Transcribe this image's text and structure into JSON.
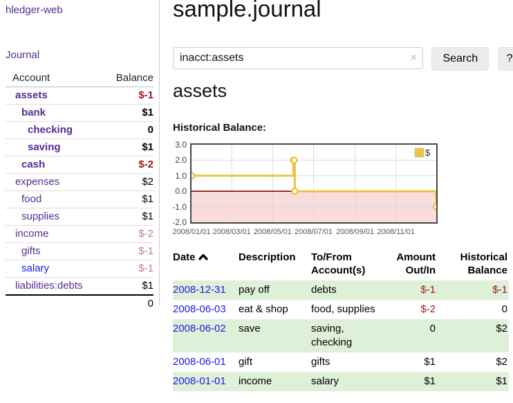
{
  "sidebar": {
    "app_title": "hledger-web",
    "journal_link": "Journal",
    "account_table": {
      "headers": [
        "Account",
        "Balance"
      ],
      "rows": [
        {
          "account": "assets",
          "balance": "$-1",
          "depth": 1,
          "bold": true,
          "balance_tone": "negative-strong"
        },
        {
          "account": "bank",
          "balance": "$1",
          "depth": 2,
          "bold": true,
          "balance_tone": "normal"
        },
        {
          "account": "checking",
          "balance": "0",
          "depth": 3,
          "bold": true,
          "balance_tone": "normal"
        },
        {
          "account": "saving",
          "balance": "$1",
          "depth": 3,
          "bold": true,
          "balance_tone": "normal"
        },
        {
          "account": "cash",
          "balance": "$-2",
          "depth": 2,
          "bold": true,
          "balance_tone": "negative-strong"
        },
        {
          "account": "expenses",
          "balance": "$2",
          "depth": 1,
          "bold": false,
          "balance_tone": "normal"
        },
        {
          "account": "food",
          "balance": "$1",
          "depth": 2,
          "bold": false,
          "balance_tone": "normal"
        },
        {
          "account": "supplies",
          "balance": "$1",
          "depth": 2,
          "bold": false,
          "balance_tone": "normal"
        },
        {
          "account": "income",
          "balance": "$-2",
          "depth": 1,
          "bold": false,
          "balance_tone": "negative-muted"
        },
        {
          "account": "gifts",
          "balance": "$-1",
          "depth": 2,
          "bold": false,
          "balance_tone": "negative-muted"
        },
        {
          "account": "salary",
          "balance": "$-1",
          "depth": 2,
          "bold": false,
          "balance_tone": "negative-muted",
          "link_tone": "blue"
        },
        {
          "account": "liabilities:debts",
          "balance": "$1",
          "depth": 1,
          "bold": false,
          "balance_tone": "normal"
        }
      ],
      "total": "0"
    }
  },
  "header": {
    "title": "sample.journal"
  },
  "search": {
    "value": "inacct:assets",
    "clear_icon": "×",
    "button_label": "Search",
    "help_label": "?"
  },
  "main": {
    "account_heading": "assets",
    "chart_label": "Historical Balance:"
  },
  "chart_data": {
    "type": "line",
    "step": true,
    "title": "Historical Balance",
    "series": [
      {
        "name": "$",
        "color": "#edc240",
        "points": [
          [
            "2008-01-01",
            1
          ],
          [
            "2008-06-01",
            2
          ],
          [
            "2008-06-02",
            2
          ],
          [
            "2008-06-03",
            0
          ],
          [
            "2008-12-31",
            -1
          ]
        ]
      }
    ],
    "x_range": [
      "2008-01-01",
      "2008-12-31"
    ],
    "ylim": [
      -2,
      3
    ],
    "y_ticks": [
      {
        "value": 3,
        "label": "3.0"
      },
      {
        "value": 2,
        "label": "2.0"
      },
      {
        "value": 1,
        "label": "1.0"
      },
      {
        "value": 0,
        "label": "0.0"
      },
      {
        "value": -1,
        "label": "-1.0"
      },
      {
        "value": -2,
        "label": "-2.0"
      }
    ],
    "x_ticks": [
      {
        "date": "2008-01-01",
        "label": "2008/01/01"
      },
      {
        "date": "2008-03-01",
        "label": "2008/03/01"
      },
      {
        "date": "2008-05-01",
        "label": "2008/05/01"
      },
      {
        "date": "2008-07-01",
        "label": "2008/07/01"
      },
      {
        "date": "2008-09-01",
        "label": "2008/09/01"
      },
      {
        "date": "2008-11-01",
        "label": "2008/11/01"
      }
    ],
    "legend": {
      "label": "$",
      "position": "top-right",
      "swatch_color": "#edc240"
    },
    "grid": true,
    "negative_region_color": "#f9dcdc",
    "zero_line_color": "#8b0000",
    "gridline_color": "#dbdbdb"
  },
  "register": {
    "headers": [
      "Date",
      "Description",
      "To/From Account(s)",
      "Amount Out/In",
      "Historical Balance"
    ],
    "sort": {
      "column": "Date",
      "direction": "ascending"
    },
    "rows": [
      {
        "date": "2008-12-31",
        "description": "pay off",
        "accounts": "debts",
        "amount": "$-1",
        "amount_negative": true,
        "balance": "$-1",
        "balance_negative": true
      },
      {
        "date": "2008-06-03",
        "description": "eat & shop",
        "accounts": "food, supplies",
        "amount": "$-2",
        "amount_negative": true,
        "balance": "0",
        "balance_negative": false
      },
      {
        "date": "2008-06-02",
        "description": "save",
        "accounts": "saving, checking",
        "amount": "0",
        "amount_negative": false,
        "balance": "$2",
        "balance_negative": false
      },
      {
        "date": "2008-06-01",
        "description": "gift",
        "accounts": "gifts",
        "amount": "$1",
        "amount_negative": false,
        "balance": "$2",
        "balance_negative": false
      },
      {
        "date": "2008-01-01",
        "description": "income",
        "accounts": "salary",
        "amount": "$1",
        "amount_negative": false,
        "balance": "$1",
        "balance_negative": false
      }
    ]
  },
  "colors": {
    "purple": "#552d90",
    "link_blue": "#1a1ae8",
    "negative_strong": "#9c1414",
    "negative_muted": "#bc7f7f",
    "row_green": "#dff0d8",
    "accent_gold": "#edc240"
  }
}
